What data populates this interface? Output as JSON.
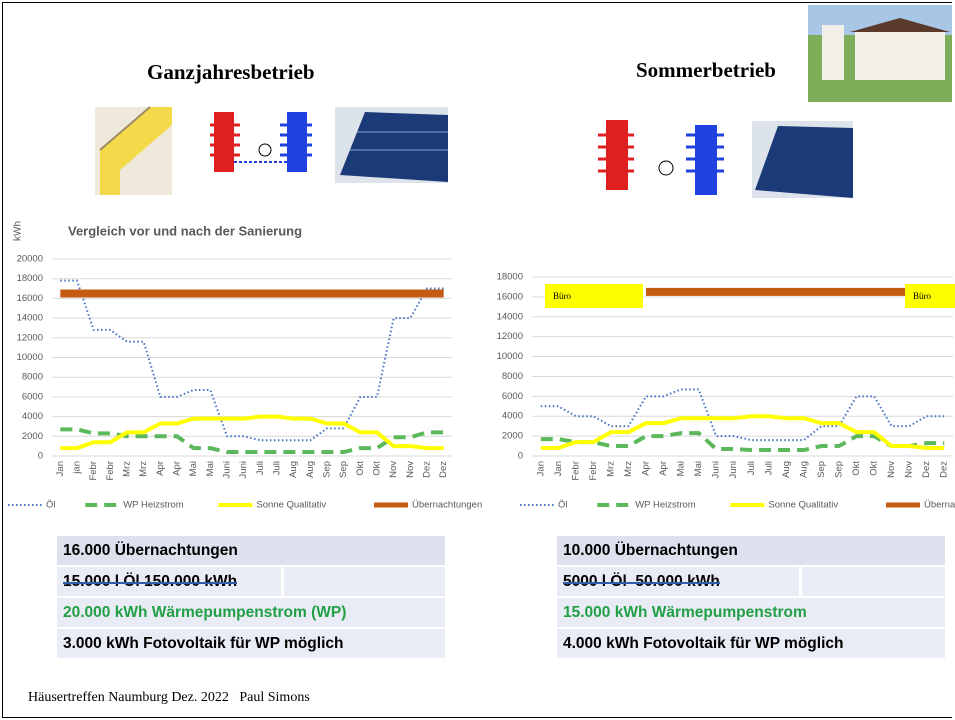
{
  "slide": {
    "headings": [
      "Ganzjahresbetrieb",
      "Sommerbetrieb"
    ],
    "footer": "Häusertreffen Naumburg Dez. 2022   Paul Simons"
  },
  "chart_data": [
    {
      "type": "line",
      "title": "Vergleich vor und nach der Sanierung",
      "y_label": "kWh",
      "categories": [
        "Jan",
        "jan",
        "Febr",
        "Febr",
        "Mrz",
        "Mrz",
        "Apr",
        "Apr",
        "Mai",
        "Mai",
        "Juni",
        "Juni",
        "Juli",
        "Juli",
        "Aug",
        "Aug",
        "Sep",
        "Sep",
        "Okt",
        "Okt",
        "Nov",
        "Nov",
        "Dez",
        "Dez"
      ],
      "series": [
        {
          "name": "Öl",
          "color": "#4472c4",
          "style": "dotted",
          "values": [
            17800,
            17800,
            12800,
            12800,
            11600,
            11600,
            6000,
            6000,
            6700,
            6700,
            2000,
            2000,
            1600,
            1600,
            1600,
            1600,
            2800,
            2800,
            6000,
            6000,
            14000,
            14000,
            17000,
            17000
          ]
        },
        {
          "name": "WP Heizstrom",
          "color": "#5cb85c",
          "style": "dashed",
          "values": [
            2700,
            2700,
            2300,
            2300,
            2000,
            2000,
            2000,
            2000,
            800,
            800,
            400,
            400,
            400,
            400,
            400,
            400,
            400,
            400,
            800,
            800,
            1900,
            1900,
            2400,
            2400
          ]
        },
        {
          "name": "Sonne Qualitativ",
          "color": "#ffff00",
          "style": "solid",
          "values": [
            800,
            800,
            1400,
            1400,
            2400,
            2400,
            3300,
            3300,
            3800,
            3800,
            3800,
            3800,
            4000,
            4000,
            3800,
            3800,
            3300,
            3300,
            2400,
            2400,
            1000,
            1000,
            800,
            800
          ]
        },
        {
          "name": "Übernachtungen",
          "color": "#c55a11",
          "style": "thick",
          "values": [
            16500,
            16500,
            16500,
            16500,
            16500,
            16500,
            16500,
            16500,
            16500,
            16500,
            16500,
            16500,
            16500,
            16500,
            16500,
            16500,
            16500,
            16500,
            16500,
            16500,
            16500,
            16500,
            16500,
            16500
          ]
        }
      ],
      "ylim": [
        0,
        20000
      ],
      "yticks": [
        0,
        2000,
        4000,
        6000,
        8000,
        10000,
        12000,
        14000,
        16000,
        18000,
        20000
      ],
      "legend": "bottom"
    },
    {
      "type": "line",
      "categories": [
        "Jan",
        "Jan",
        "Febr",
        "Febr",
        "Mrz",
        "Mrz",
        "Apr",
        "Apr",
        "Mai",
        "Mai",
        "Juni",
        "Juni",
        "Juli",
        "Juli",
        "Aug",
        "Aug",
        "Sep",
        "Sep",
        "Okt",
        "Okt",
        "Nov",
        "Nov",
        "Dez",
        "Dez"
      ],
      "series": [
        {
          "name": "Öl",
          "color": "#4472c4",
          "style": "dotted",
          "values": [
            5000,
            5000,
            4000,
            4000,
            3000,
            3000,
            6000,
            6000,
            6700,
            6700,
            2000,
            2000,
            1600,
            1600,
            1600,
            1600,
            3000,
            3000,
            6000,
            6000,
            3000,
            3000,
            4000,
            4000
          ]
        },
        {
          "name": "WP Heizstrom",
          "color": "#5cb85c",
          "style": "dashed",
          "values": [
            1700,
            1700,
            1400,
            1400,
            1000,
            1000,
            2000,
            2000,
            2300,
            2300,
            700,
            700,
            600,
            600,
            600,
            600,
            1000,
            1000,
            2000,
            2000,
            1000,
            1000,
            1300,
            1300
          ]
        },
        {
          "name": "Sonne Qualitativ",
          "color": "#ffff00",
          "style": "solid",
          "values": [
            800,
            800,
            1400,
            1400,
            2400,
            2400,
            3300,
            3300,
            3800,
            3800,
            3800,
            3800,
            4000,
            4000,
            3800,
            3800,
            3300,
            3300,
            2400,
            2400,
            1000,
            1000,
            800,
            800
          ]
        },
        {
          "name": "Übernachtungen",
          "color": "#c55a11",
          "style": "thick",
          "values": [
            null,
            null,
            null,
            null,
            null,
            null,
            16500,
            16500,
            16500,
            16500,
            16500,
            16500,
            16500,
            16500,
            16500,
            16500,
            16500,
            16500,
            16500,
            16500,
            16500,
            16500,
            null,
            null
          ]
        }
      ],
      "ylim": [
        0,
        18000
      ],
      "yticks": [
        0,
        2000,
        4000,
        6000,
        8000,
        10000,
        12000,
        14000,
        16000,
        18000
      ],
      "legend": "bottom",
      "annotations": [
        "Büro",
        "Büro"
      ]
    }
  ],
  "tables": [
    [
      "16.000 Übernachtungen",
      "15.000 l Öl 150.000 kWh",
      "20.000 kWh Wärmepumpenstrom (WP)",
      "3.000 kWh Fotovoltaik für WP möglich"
    ],
    [
      "10.000 Übernachtungen",
      "5000 l Öl  50.000 kWh",
      "15.000 kWh Wärmepumpenstrom",
      "4.000 kWh Fotovoltaik für WP möglich"
    ]
  ]
}
